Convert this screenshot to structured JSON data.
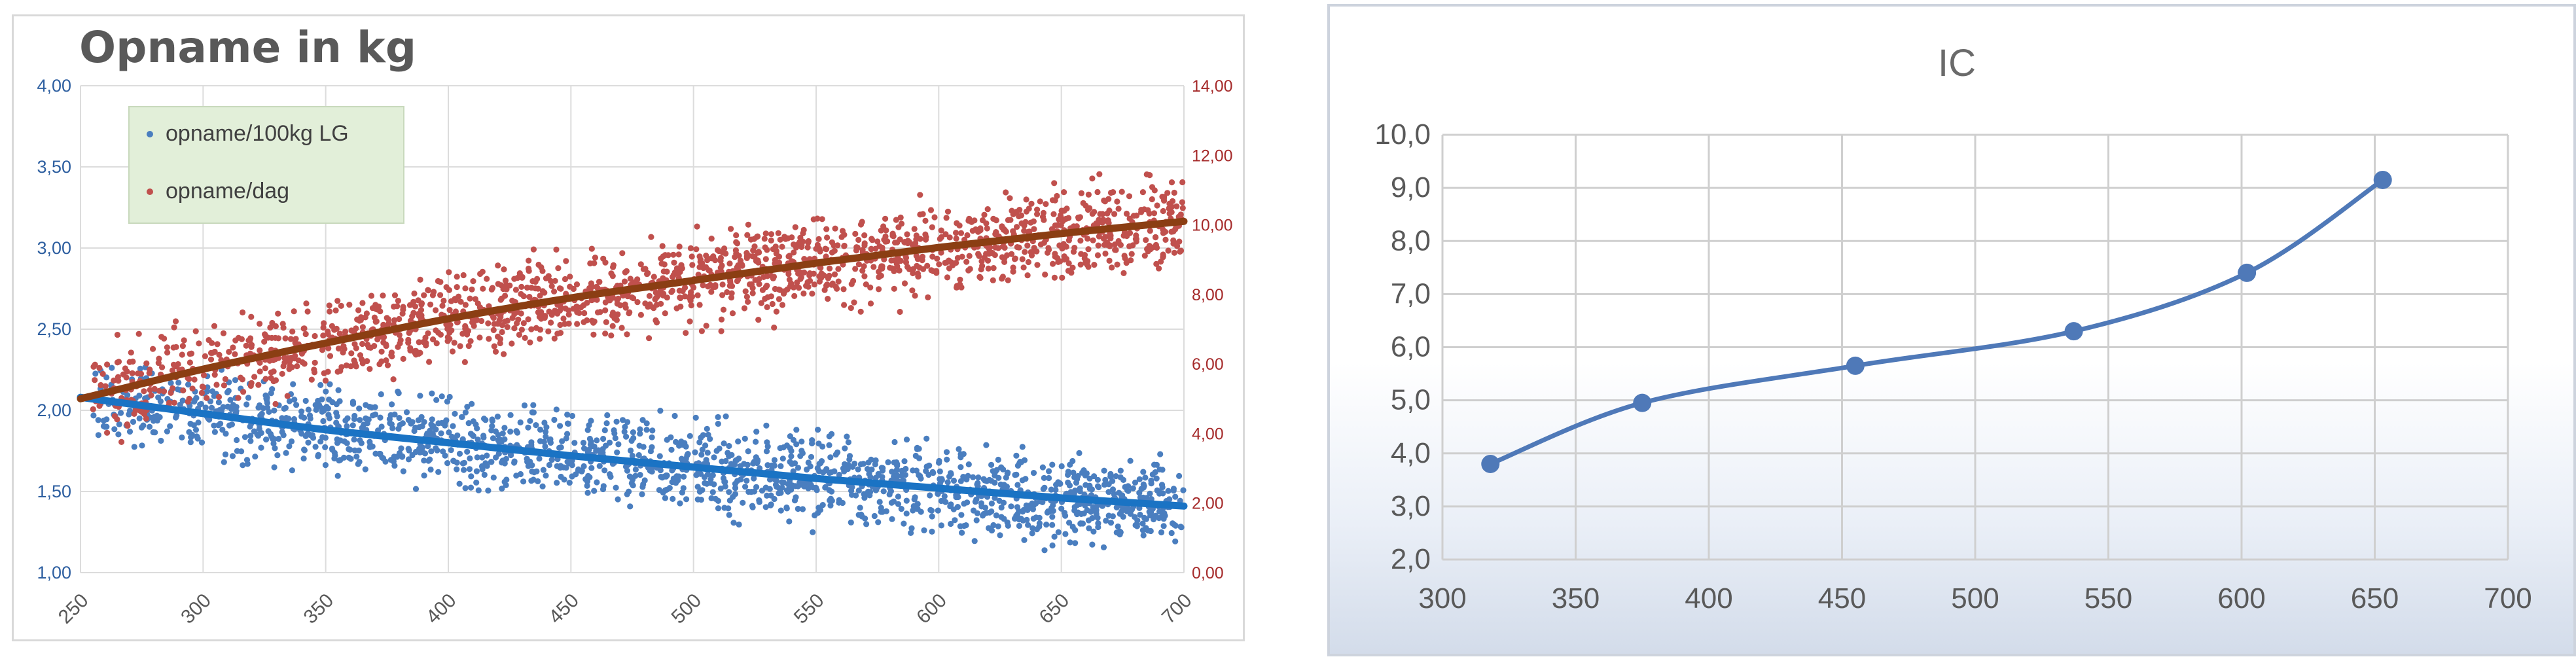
{
  "chart_data": [
    {
      "type": "scatter",
      "title": "Opname in kg",
      "xlabel": "",
      "ylabel": "",
      "x_ticks": [
        "250",
        "300",
        "350",
        "400",
        "450",
        "500",
        "550",
        "600",
        "650",
        "700"
      ],
      "xlim": [
        250,
        700
      ],
      "y_left_ticks": [
        "1,00",
        "1,50",
        "2,00",
        "2,50",
        "3,00",
        "3,50",
        "4,00"
      ],
      "ylim_left": [
        1.0,
        4.0
      ],
      "y_right_ticks": [
        "0,00",
        "2,00",
        "4,00",
        "6,00",
        "8,00",
        "10,00",
        "12,00",
        "14,00"
      ],
      "ylim_right": [
        0,
        14
      ],
      "grid": true,
      "legend_position": "top-left",
      "series": [
        {
          "name": "opname/100kg LG",
          "axis": "left",
          "color": "#4a7ebf",
          "trend_color": "#1a73c4",
          "trend": [
            [
              250,
              2.08
            ],
            [
              300,
              1.98
            ],
            [
              350,
              1.88
            ],
            [
              400,
              1.8
            ],
            [
              450,
              1.72
            ],
            [
              500,
              1.65
            ],
            [
              550,
              1.58
            ],
            [
              600,
              1.52
            ],
            [
              650,
              1.46
            ],
            [
              700,
              1.41
            ]
          ],
          "scatter_band": {
            "x_from": 255,
            "x_to": 700,
            "spread": 0.22
          }
        },
        {
          "name": "opname/dag",
          "axis": "right",
          "color": "#c0504d",
          "trend_color": "#8b3e13",
          "trend": [
            [
              250,
              5.0
            ],
            [
              300,
              5.85
            ],
            [
              350,
              6.6
            ],
            [
              400,
              7.3
            ],
            [
              450,
              7.9
            ],
            [
              500,
              8.4
            ],
            [
              550,
              8.9
            ],
            [
              600,
              9.35
            ],
            [
              650,
              9.75
            ],
            [
              700,
              10.1
            ]
          ],
          "scatter_band": {
            "x_from": 255,
            "x_to": 700,
            "spread": 1.05
          }
        }
      ]
    },
    {
      "type": "line",
      "title": "IC",
      "xlabel": "",
      "ylabel": "",
      "x_ticks": [
        "300",
        "350",
        "400",
        "450",
        "500",
        "550",
        "600",
        "650",
        "700"
      ],
      "xlim": [
        300,
        700
      ],
      "y_ticks": [
        "2,0",
        "3,0",
        "4,0",
        "5,0",
        "6,0",
        "7,0",
        "8,0",
        "9,0",
        "10,0"
      ],
      "ylim": [
        2,
        10
      ],
      "grid": true,
      "series": [
        {
          "name": "",
          "color": "#4f79b8",
          "points": [
            [
              318,
              3.8
            ],
            [
              375,
              4.95
            ],
            [
              455,
              5.65
            ],
            [
              537,
              6.3
            ],
            [
              602,
              7.4
            ],
            [
              653,
              9.15
            ]
          ]
        }
      ]
    }
  ]
}
